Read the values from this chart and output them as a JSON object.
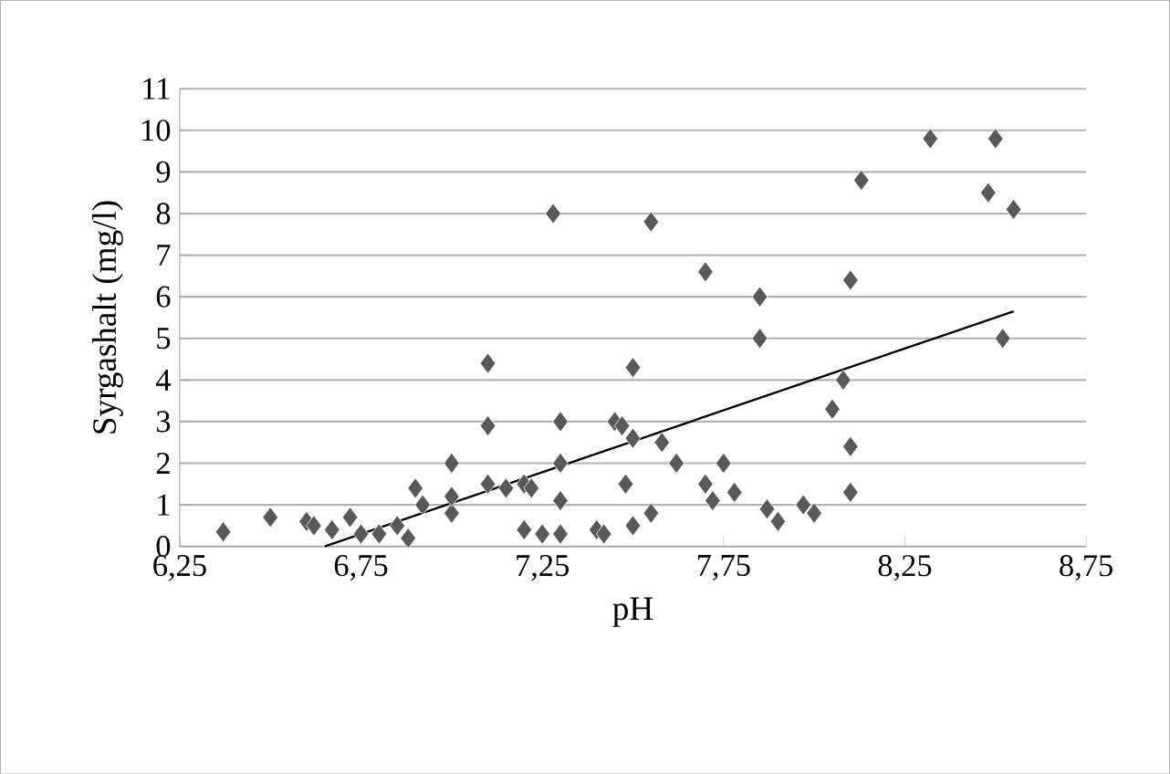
{
  "chart_data": {
    "type": "scatter",
    "xlabel": "pH",
    "ylabel": "Syrgashalt (mg/l)",
    "xlim": [
      6.25,
      8.75
    ],
    "ylim": [
      0,
      11
    ],
    "xticks": [
      {
        "value": 6.25,
        "label": "6,25"
      },
      {
        "value": 6.75,
        "label": "6,75"
      },
      {
        "value": 7.25,
        "label": "7,25"
      },
      {
        "value": 7.75,
        "label": "7,75"
      },
      {
        "value": 8.25,
        "label": "8,25"
      },
      {
        "value": 8.75,
        "label": "8,75"
      }
    ],
    "yticks": [
      0,
      1,
      2,
      3,
      4,
      5,
      6,
      7,
      8,
      9,
      10,
      11
    ],
    "grid": "y",
    "series": [
      {
        "marker": "diamond",
        "color": "#595959",
        "x": [
          6.37,
          6.5,
          6.6,
          6.62,
          6.67,
          6.72,
          6.75,
          6.8,
          6.85,
          6.88,
          6.9,
          6.92,
          7.0,
          7.0,
          7.0,
          7.1,
          7.1,
          7.1,
          7.15,
          7.2,
          7.2,
          7.22,
          7.25,
          7.28,
          7.3,
          7.3,
          7.3,
          7.3,
          7.4,
          7.42,
          7.45,
          7.47,
          7.48,
          7.5,
          7.5,
          7.5,
          7.55,
          7.58,
          7.55,
          7.62,
          7.7,
          7.7,
          7.72,
          7.75,
          7.78,
          7.85,
          7.85,
          7.87,
          7.9,
          7.97,
          8.0,
          8.05,
          8.08,
          8.1,
          8.1,
          8.1,
          8.13,
          8.32,
          8.48,
          8.5,
          8.52,
          8.55
        ],
        "values": [
          0.35,
          0.7,
          0.6,
          0.5,
          0.4,
          0.7,
          0.3,
          0.3,
          0.5,
          0.2,
          1.4,
          1.0,
          2.0,
          0.8,
          1.2,
          4.4,
          2.9,
          1.5,
          1.4,
          0.4,
          1.5,
          1.4,
          0.3,
          8.0,
          3.0,
          2.0,
          1.1,
          0.3,
          0.4,
          0.3,
          3.0,
          2.9,
          1.5,
          2.6,
          0.5,
          4.3,
          7.8,
          2.5,
          0.8,
          2.0,
          6.6,
          1.5,
          1.1,
          2.0,
          1.3,
          6.0,
          5.0,
          0.9,
          0.6,
          1.0,
          0.8,
          3.3,
          4.0,
          2.4,
          1.3,
          6.4,
          8.8,
          9.8,
          8.5,
          9.8,
          5.0,
          8.1
        ]
      },
      {
        "type": "line",
        "marker": "none",
        "color": "#000000",
        "x": [
          6.65,
          8.55
        ],
        "values": [
          0,
          5.65
        ]
      }
    ]
  }
}
